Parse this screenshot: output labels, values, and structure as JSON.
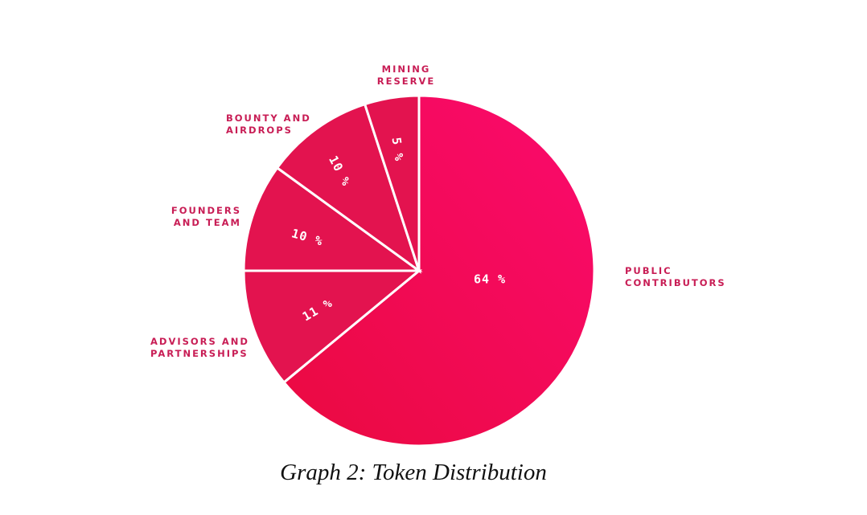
{
  "chart_data": {
    "type": "pie",
    "title": "Graph 2: Token Distribution",
    "start": "top",
    "direction": "clockwise",
    "slices": [
      {
        "label": [
          "PUBLIC",
          "CONTRIBUTORS"
        ],
        "value": 64,
        "data_label": "64 %",
        "color": "#f4075f"
      },
      {
        "label": [
          "ADVISORS AND",
          "PARTNERSHIPS"
        ],
        "value": 11,
        "data_label": "11 %",
        "color": "#e3134f"
      },
      {
        "label": [
          "FOUNDERS",
          "AND TEAM"
        ],
        "value": 10,
        "data_label": "10 %",
        "color": "#e3134f"
      },
      {
        "label": [
          "BOUNTY AND",
          "AIRDROPS"
        ],
        "value": 10,
        "data_label": "10 %",
        "color": "#e3134f"
      },
      {
        "label": [
          "MINING",
          "RESERVE"
        ],
        "value": 5,
        "data_label": "5 %",
        "color": "#e3134f"
      }
    ],
    "label_color": "#c81d55",
    "legend": "none"
  }
}
